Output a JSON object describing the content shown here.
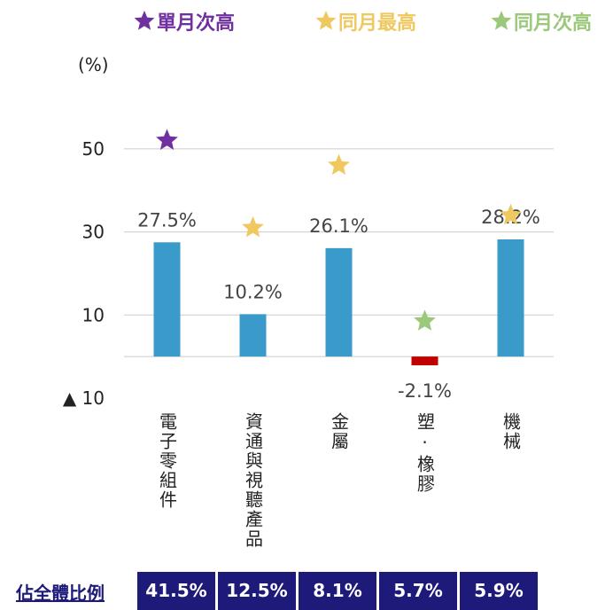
{
  "chart_data": {
    "type": "bar",
    "y_label": "(%)",
    "categories": [
      "電子零組件",
      "資通與視聽產品",
      "金屬",
      "塑·橡膠",
      "機械"
    ],
    "values": [
      27.5,
      10.2,
      26.1,
      -2.1,
      28.2
    ],
    "value_labels": [
      "27.5%",
      "10.2%",
      "26.1%",
      "-2.1%",
      "28.2%"
    ],
    "color": "#3a9ac9",
    "negative_color": "#c00000",
    "markers": [
      {
        "name": "單月次高",
        "color": "#7030a0",
        "values": [
          52,
          null,
          null,
          null,
          null
        ]
      },
      {
        "name": "同月最高",
        "color": "#f0c860",
        "values": [
          null,
          31,
          46,
          null,
          34
        ]
      },
      {
        "name": "同月次高",
        "color": "#9bc87a",
        "values": [
          null,
          null,
          null,
          8.5,
          null
        ]
      }
    ],
    "ylim": [
      -10,
      60
    ],
    "yticks": [
      50,
      30,
      10,
      {
        "value": -10,
        "label": "▲ 10"
      }
    ],
    "grid": true,
    "share": {
      "label": "佔全體比例",
      "values": [
        "41.5%",
        "12.5%",
        "8.1%",
        "5.7%",
        "5.9%"
      ]
    }
  }
}
